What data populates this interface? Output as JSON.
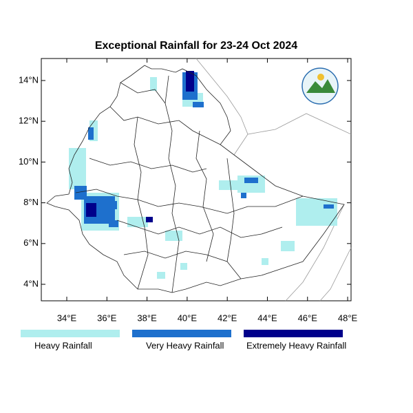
{
  "title": "Exceptional Rainfall for 23-24 Oct 2024",
  "map": {
    "xlim": [
      32.73,
      48.17
    ],
    "ylim": [
      3.19,
      15.08
    ],
    "lat_ticks": [
      {
        "value": 4,
        "label": "4°N"
      },
      {
        "value": 6,
        "label": "6°N"
      },
      {
        "value": 8,
        "label": "8°N"
      },
      {
        "value": 10,
        "label": "10°N"
      },
      {
        "value": 12,
        "label": "12°N"
      },
      {
        "value": 14,
        "label": "14°N"
      }
    ],
    "lon_ticks": [
      {
        "value": 34,
        "label": "34°E"
      },
      {
        "value": 36,
        "label": "36°E"
      },
      {
        "value": 38,
        "label": "38°E"
      },
      {
        "value": 40,
        "label": "40°E"
      },
      {
        "value": 42,
        "label": "42°E"
      },
      {
        "value": 44,
        "label": "44°E"
      },
      {
        "value": 46,
        "label": "46°E"
      },
      {
        "value": 48,
        "label": "48°E"
      }
    ]
  },
  "legend": [
    {
      "label": "Heavy Rainfall",
      "color": "#afeeee"
    },
    {
      "label": "Very Heavy Rainfall",
      "color": "#1e70cd"
    },
    {
      "label": "Extremely Heavy Rainfall",
      "color": "#00008b"
    }
  ]
}
